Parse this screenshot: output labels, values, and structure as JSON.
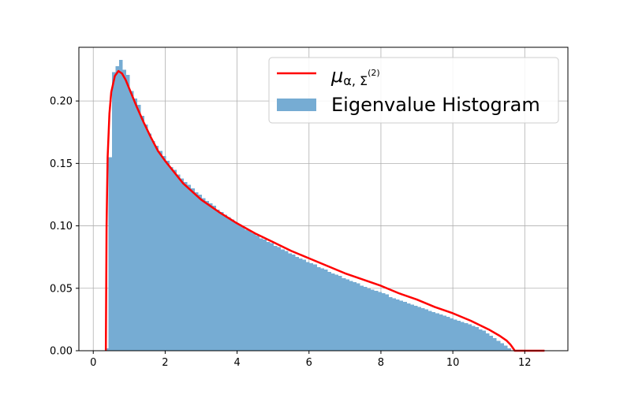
{
  "chart_data": {
    "type": "bar",
    "title": "",
    "xlabel": "",
    "ylabel": "",
    "xlim": [
      -0.4,
      13.2
    ],
    "ylim": [
      0,
      0.243
    ],
    "grid": true,
    "legend_position": "top-right",
    "x_ticks": [
      0,
      2,
      4,
      6,
      8,
      10,
      12
    ],
    "x_tick_labels": [
      "0",
      "2",
      "4",
      "6",
      "8",
      "10",
      "12"
    ],
    "y_ticks": [
      0.0,
      0.05,
      0.1,
      0.15,
      0.2
    ],
    "y_tick_labels": [
      "0.00",
      "0.05",
      "0.10",
      "0.15",
      "0.20"
    ],
    "histogram": {
      "name": "Eigenvalue Histogram",
      "color": "#76acd3",
      "x_start": 0.32,
      "bin_width": 0.1,
      "values": [
        0.002,
        0.155,
        0.223,
        0.228,
        0.233,
        0.225,
        0.221,
        0.208,
        0.202,
        0.197,
        0.188,
        0.181,
        0.174,
        0.168,
        0.164,
        0.16,
        0.156,
        0.152,
        0.147,
        0.145,
        0.141,
        0.138,
        0.135,
        0.133,
        0.13,
        0.127,
        0.125,
        0.122,
        0.12,
        0.118,
        0.116,
        0.113,
        0.111,
        0.109,
        0.107,
        0.105,
        0.103,
        0.101,
        0.099,
        0.097,
        0.096,
        0.094,
        0.092,
        0.09,
        0.089,
        0.087,
        0.086,
        0.084,
        0.083,
        0.081,
        0.08,
        0.078,
        0.077,
        0.075,
        0.074,
        0.073,
        0.071,
        0.07,
        0.069,
        0.067,
        0.066,
        0.065,
        0.063,
        0.062,
        0.061,
        0.06,
        0.058,
        0.057,
        0.056,
        0.055,
        0.054,
        0.052,
        0.051,
        0.05,
        0.049,
        0.048,
        0.047,
        0.046,
        0.045,
        0.043,
        0.042,
        0.041,
        0.04,
        0.039,
        0.038,
        0.037,
        0.036,
        0.035,
        0.034,
        0.033,
        0.032,
        0.031,
        0.03,
        0.029,
        0.028,
        0.027,
        0.026,
        0.025,
        0.024,
        0.023,
        0.022,
        0.021,
        0.02,
        0.019,
        0.017,
        0.016,
        0.014,
        0.012,
        0.01,
        0.008,
        0.006,
        0.004,
        0.002
      ]
    },
    "density_curve": {
      "name": "$\\mu_{\\alpha,\\mathbf{\\Sigma}^{(2)}}$",
      "color": "#ff0000",
      "x": [
        0.35,
        0.36,
        0.37,
        0.4,
        0.45,
        0.5,
        0.6,
        0.7,
        0.8,
        0.9,
        1.0,
        1.2,
        1.4,
        1.6,
        1.8,
        2.0,
        2.5,
        3.0,
        3.5,
        4.0,
        4.5,
        5.0,
        5.5,
        6.0,
        6.5,
        7.0,
        7.5,
        8.0,
        8.5,
        9.0,
        9.5,
        10.0,
        10.5,
        11.0,
        11.3,
        11.5,
        11.6,
        11.65,
        11.7,
        11.72,
        12.55
      ],
      "y": [
        0.0,
        0.05,
        0.1,
        0.155,
        0.19,
        0.207,
        0.22,
        0.224,
        0.222,
        0.217,
        0.21,
        0.196,
        0.183,
        0.171,
        0.16,
        0.152,
        0.134,
        0.121,
        0.111,
        0.102,
        0.094,
        0.087,
        0.08,
        0.074,
        0.068,
        0.062,
        0.057,
        0.052,
        0.046,
        0.041,
        0.035,
        0.03,
        0.024,
        0.017,
        0.012,
        0.008,
        0.005,
        0.003,
        0.001,
        0.0,
        0.0
      ]
    }
  },
  "legend": {
    "curve_label_base": "μ",
    "curve_label_sub": "α, Σ",
    "curve_label_sup": "(2)",
    "hist_label": "Eigenvalue Histogram"
  }
}
